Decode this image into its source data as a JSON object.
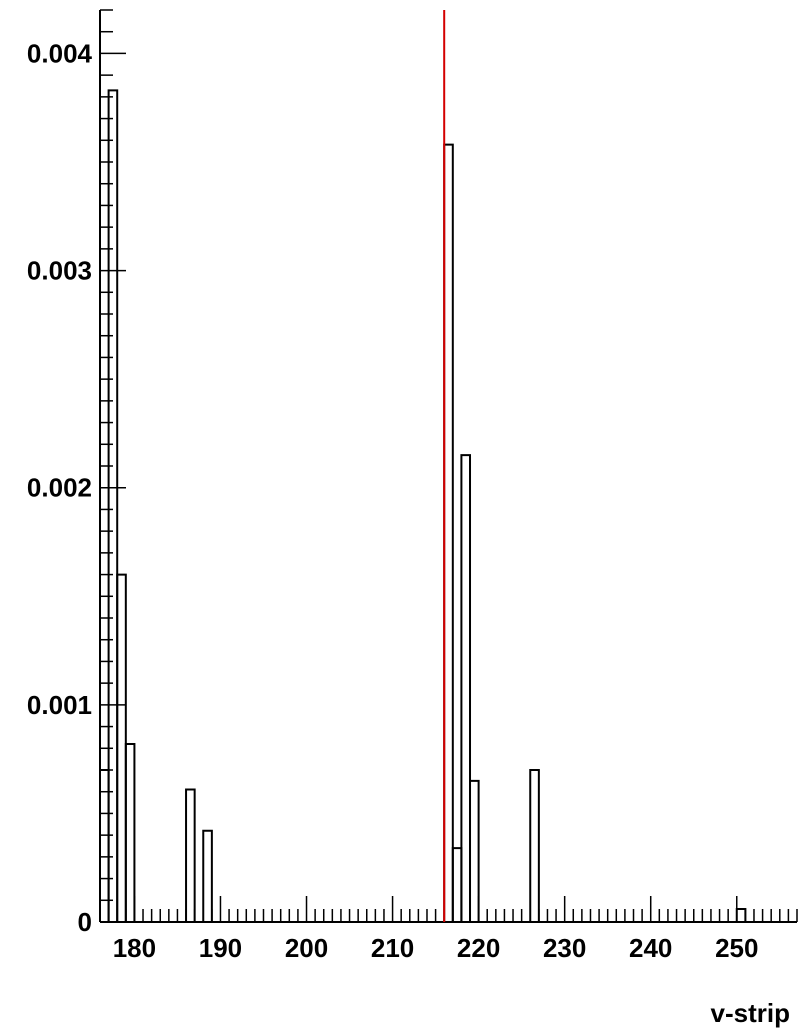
{
  "chart_data": {
    "type": "bar",
    "style": "step-histogram",
    "xlabel": "v-strip",
    "ylabel": "",
    "title": "",
    "xlim": [
      176,
      257
    ],
    "ylim": [
      0,
      0.0042
    ],
    "grid": false,
    "x_ticks": [
      180,
      190,
      200,
      210,
      220,
      230,
      240,
      250
    ],
    "x_tick_labels": [
      "180",
      "190",
      "200",
      "210",
      "220",
      "230",
      "240",
      "250"
    ],
    "y_ticks": [
      0,
      0.001,
      0.002,
      0.003,
      0.004
    ],
    "y_tick_labels": [
      "0",
      "0.001",
      "0.002",
      "0.003",
      "0.004"
    ],
    "bin_width": 1,
    "bins": [
      {
        "x": 176,
        "y": 0.0007
      },
      {
        "x": 177,
        "y": 0.00383
      },
      {
        "x": 178,
        "y": 0.0016
      },
      {
        "x": 179,
        "y": 0.00082
      },
      {
        "x": 186,
        "y": 0.00061
      },
      {
        "x": 188,
        "y": 0.00042
      },
      {
        "x": 216,
        "y": 0.00358
      },
      {
        "x": 217,
        "y": 0.00034
      },
      {
        "x": 218,
        "y": 0.00215
      },
      {
        "x": 219,
        "y": 0.00065
      },
      {
        "x": 226,
        "y": 0.0007
      },
      {
        "x": 250,
        "y": 6e-05
      }
    ],
    "marker_line": {
      "x": 216,
      "color": "#d40000"
    },
    "line_color": "#000000"
  }
}
